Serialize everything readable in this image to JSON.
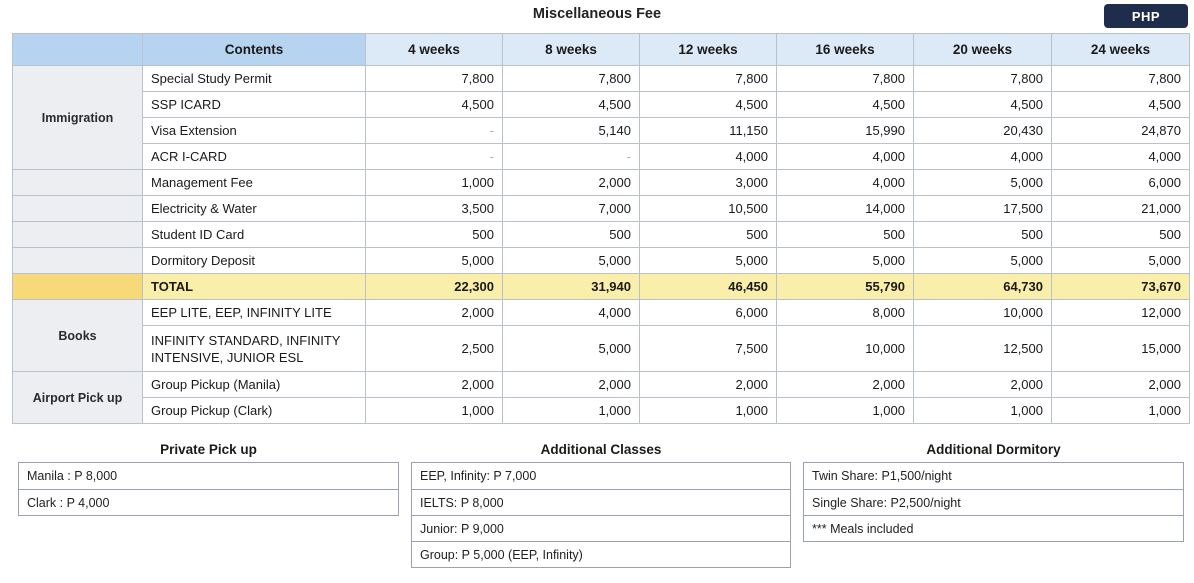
{
  "title": "Miscellaneous Fee",
  "currency": "PHP",
  "table": {
    "headers": [
      "",
      "Contents",
      "4 weeks",
      "8 weeks",
      "12 weeks",
      "16 weeks",
      "20 weeks",
      "24 weeks"
    ],
    "groups": {
      "immigration": "Immigration",
      "books": "Books",
      "airport": "Airport Pick up"
    },
    "rows": [
      {
        "item": "Special Study Permit",
        "values": [
          "7,800",
          "7,800",
          "7,800",
          "7,800",
          "7,800",
          "7,800"
        ]
      },
      {
        "item": "SSP ICARD",
        "values": [
          "4,500",
          "4,500",
          "4,500",
          "4,500",
          "4,500",
          "4,500"
        ]
      },
      {
        "item": "Visa Extension",
        "values": [
          "-",
          "5,140",
          "11,150",
          "15,990",
          "20,430",
          "24,870"
        ]
      },
      {
        "item": "ACR I-CARD",
        "values": [
          "-",
          "-",
          "4,000",
          "4,000",
          "4,000",
          "4,000"
        ]
      },
      {
        "item": "Management Fee",
        "values": [
          "1,000",
          "2,000",
          "3,000",
          "4,000",
          "5,000",
          "6,000"
        ]
      },
      {
        "item": "Electricity & Water",
        "values": [
          "3,500",
          "7,000",
          "10,500",
          "14,000",
          "17,500",
          "21,000"
        ]
      },
      {
        "item": "Student ID Card",
        "values": [
          "500",
          "500",
          "500",
          "500",
          "500",
          "500"
        ]
      },
      {
        "item": "Dormitory Deposit",
        "values": [
          "5,000",
          "5,000",
          "5,000",
          "5,000",
          "5,000",
          "5,000"
        ]
      },
      {
        "item": "TOTAL",
        "values": [
          "22,300",
          "31,940",
          "46,450",
          "55,790",
          "64,730",
          "73,670"
        ]
      },
      {
        "item": "EEP LITE, EEP, INFINITY LITE",
        "values": [
          "2,000",
          "4,000",
          "6,000",
          "8,000",
          "10,000",
          "12,000"
        ]
      },
      {
        "item_line1": "INFINITY STANDARD, INFINITY",
        "item_line2": "INTENSIVE, JUNIOR ESL",
        "values": [
          "2,500",
          "5,000",
          "7,500",
          "10,000",
          "12,500",
          "15,000"
        ]
      },
      {
        "item": "Group Pickup (Manila)",
        "values": [
          "2,000",
          "2,000",
          "2,000",
          "2,000",
          "2,000",
          "2,000"
        ]
      },
      {
        "item": "Group Pickup (Clark)",
        "values": [
          "1,000",
          "1,000",
          "1,000",
          "1,000",
          "1,000",
          "1,000"
        ]
      }
    ]
  },
  "private_pickup": {
    "title": "Private Pick up",
    "items": [
      "Manila : P 8,000",
      "Clark : P 4,000"
    ]
  },
  "additional_classes": {
    "title": "Additional Classes",
    "items": [
      "EEP, Infinity: P 7,000",
      "IELTS: P 8,000",
      "Junior: P 9,000",
      "Group: P 5,000 (EEP, Infinity)"
    ]
  },
  "additional_dormitory": {
    "title": "Additional Dormitory",
    "items": [
      "Twin Share: P1,500/night",
      "Single Share: P2,500/night",
      "*** Meals included"
    ]
  }
}
